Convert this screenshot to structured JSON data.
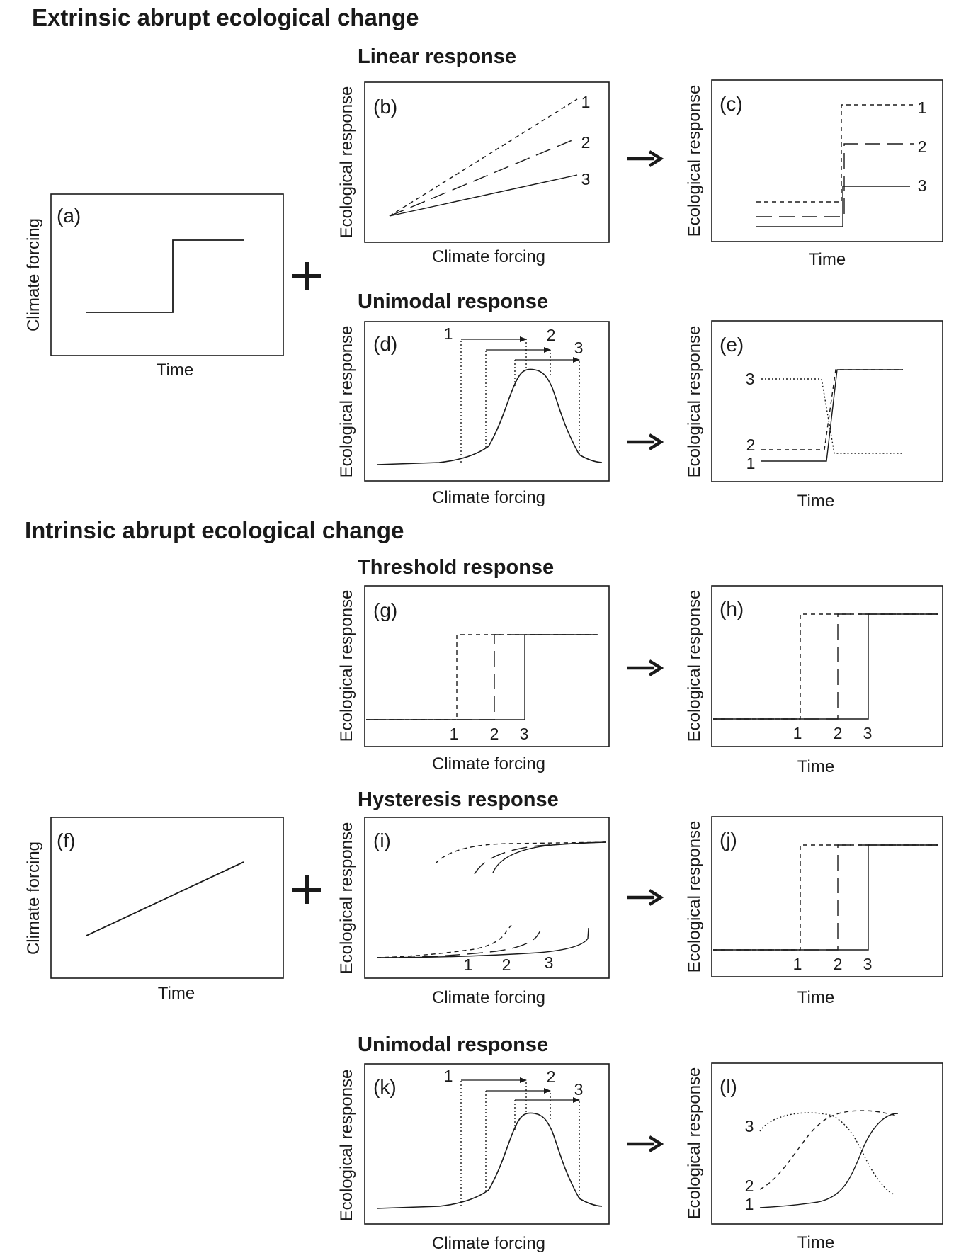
{
  "sections": {
    "extrinsic": "Extrinsic abrupt ecological change",
    "intrinsic": "Intrinsic abrupt ecological change"
  },
  "titles": {
    "linear": "Linear response",
    "unimodal_top": "Unimodal response",
    "threshold": "Threshold response",
    "hysteresis": "Hysteresis response",
    "unimodal_bottom": "Unimodal response"
  },
  "operators": {
    "plus": "+",
    "arrow": "→"
  },
  "axes": {
    "climate_forcing": "Climate forcing",
    "time": "Time",
    "ecological_response": "Ecological response"
  },
  "panels": {
    "a": "(a)",
    "b": "(b)",
    "c": "(c)",
    "d": "(d)",
    "e": "(e)",
    "f": "(f)",
    "g": "(g)",
    "h": "(h)",
    "i": "(i)",
    "j": "(j)",
    "k": "(k)",
    "l": "(l)"
  },
  "series": {
    "s1": "1",
    "s2": "2",
    "s3": "3"
  },
  "colors": {
    "ink": "#1a1a1a",
    "background": "#ffffff"
  }
}
